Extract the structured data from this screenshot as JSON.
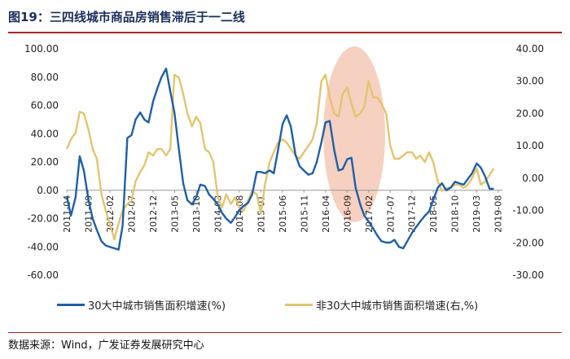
{
  "title": "图19：三四线城市商品房销售滞后于一二线",
  "source": "数据来源：Wind，广发证券发展研究中心",
  "colors": {
    "left_series": "#1f5fa8",
    "right_series": "#e3c46e",
    "highlight": "#f4c4b0",
    "title": "#1a2e5c",
    "rule": "#b22222"
  },
  "chart_data": {
    "type": "line",
    "x": [
      "2011-04",
      "2011-09",
      "2012-02",
      "2012-07",
      "2012-12",
      "2013-05",
      "2013-10",
      "2014-03",
      "2014-08",
      "2015-01",
      "2015-06",
      "2015-11",
      "2016-04",
      "2016-09",
      "2017-02",
      "2017-07",
      "2017-12",
      "2018-05",
      "2018-10",
      "2019-03",
      "2019-08"
    ],
    "y_left_ticks": [
      "100.00",
      "80.00",
      "60.00",
      "40.00",
      "20.00",
      "0.00",
      "-20.00",
      "-40.00",
      "-60.00"
    ],
    "y_right_ticks": [
      "40.00",
      "30.00",
      "20.00",
      "10.00",
      "0.00",
      "-10.00",
      "-20.00",
      "-30.00"
    ],
    "ylim_left": [
      -60,
      100
    ],
    "ylim_right": [
      -30,
      40
    ],
    "grid": false,
    "legend_position": "bottom",
    "series": [
      {
        "name": "30大中城市销售面积增速(%)",
        "axis": "left",
        "values": [
          [
            2011.25,
            -4
          ],
          [
            2011.33,
            -18
          ],
          [
            2011.42,
            -5
          ],
          [
            2011.5,
            24
          ],
          [
            2011.58,
            14
          ],
          [
            2011.67,
            -7
          ],
          [
            2011.75,
            -20
          ],
          [
            2011.83,
            -28
          ],
          [
            2011.92,
            -36
          ],
          [
            2012.0,
            -39
          ],
          [
            2012.08,
            -40
          ],
          [
            2012.17,
            -41
          ],
          [
            2012.25,
            -42
          ],
          [
            2012.33,
            -25
          ],
          [
            2012.42,
            37
          ],
          [
            2012.5,
            39
          ],
          [
            2012.58,
            50
          ],
          [
            2012.67,
            55
          ],
          [
            2012.75,
            50
          ],
          [
            2012.83,
            48
          ],
          [
            2012.92,
            63
          ],
          [
            2013.0,
            72
          ],
          [
            2013.08,
            80
          ],
          [
            2013.17,
            86
          ],
          [
            2013.25,
            70
          ],
          [
            2013.33,
            55
          ],
          [
            2013.42,
            28
          ],
          [
            2013.5,
            5
          ],
          [
            2013.58,
            -7
          ],
          [
            2013.67,
            -10
          ],
          [
            2013.75,
            -5
          ],
          [
            2013.83,
            4
          ],
          [
            2013.92,
            3
          ],
          [
            2014.0,
            -3
          ],
          [
            2014.08,
            -6
          ],
          [
            2014.17,
            -10
          ],
          [
            2014.25,
            -16
          ],
          [
            2014.33,
            -20
          ],
          [
            2014.42,
            -23
          ],
          [
            2014.5,
            -19
          ],
          [
            2014.58,
            -14
          ],
          [
            2014.67,
            -11
          ],
          [
            2014.75,
            -9
          ],
          [
            2014.83,
            -3
          ],
          [
            2014.92,
            13
          ],
          [
            2015.0,
            13
          ],
          [
            2015.08,
            12
          ],
          [
            2015.17,
            14
          ],
          [
            2015.25,
            12
          ],
          [
            2015.33,
            28
          ],
          [
            2015.42,
            47
          ],
          [
            2015.5,
            53
          ],
          [
            2015.58,
            45
          ],
          [
            2015.67,
            25
          ],
          [
            2015.75,
            17
          ],
          [
            2015.83,
            14
          ],
          [
            2015.92,
            11
          ],
          [
            2016.0,
            12
          ],
          [
            2016.08,
            20
          ],
          [
            2016.17,
            34
          ],
          [
            2016.25,
            48
          ],
          [
            2016.33,
            49
          ],
          [
            2016.42,
            28
          ],
          [
            2016.5,
            14
          ],
          [
            2016.58,
            15
          ],
          [
            2016.67,
            22
          ],
          [
            2016.75,
            23
          ],
          [
            2016.83,
            2
          ],
          [
            2016.92,
            -10
          ],
          [
            2017.0,
            -18
          ],
          [
            2017.08,
            -22
          ],
          [
            2017.17,
            -27
          ],
          [
            2017.25,
            -32
          ],
          [
            2017.33,
            -36
          ],
          [
            2017.42,
            -37
          ],
          [
            2017.5,
            -37
          ],
          [
            2017.58,
            -35
          ],
          [
            2017.67,
            -40
          ],
          [
            2017.75,
            -41
          ],
          [
            2017.83,
            -36
          ],
          [
            2017.92,
            -30
          ],
          [
            2018.0,
            -26
          ],
          [
            2018.08,
            -22
          ],
          [
            2018.17,
            -18
          ],
          [
            2018.25,
            -15
          ],
          [
            2018.33,
            -7
          ],
          [
            2018.42,
            2
          ],
          [
            2018.5,
            5
          ],
          [
            2018.58,
            0
          ],
          [
            2018.67,
            2
          ],
          [
            2018.75,
            6
          ],
          [
            2018.83,
            5
          ],
          [
            2018.92,
            4
          ],
          [
            2019.0,
            8
          ],
          [
            2019.08,
            12
          ],
          [
            2019.17,
            19
          ],
          [
            2019.25,
            16
          ],
          [
            2019.33,
            10
          ],
          [
            2019.42,
            1
          ],
          [
            2019.5,
            1
          ]
        ]
      },
      {
        "name": "非30大中城市销售面积增速(右,%)",
        "axis": "right",
        "values": [
          [
            2011.25,
            9
          ],
          [
            2011.33,
            12
          ],
          [
            2011.42,
            14
          ],
          [
            2011.5,
            20.5
          ],
          [
            2011.58,
            20
          ],
          [
            2011.67,
            15
          ],
          [
            2011.75,
            9
          ],
          [
            2011.83,
            6
          ],
          [
            2011.92,
            -5
          ],
          [
            2012.0,
            -10
          ],
          [
            2012.08,
            -14
          ],
          [
            2012.17,
            -19
          ],
          [
            2012.25,
            -14
          ],
          [
            2012.33,
            -10
          ],
          [
            2012.42,
            -8
          ],
          [
            2012.5,
            -7
          ],
          [
            2012.58,
            -1
          ],
          [
            2012.67,
            2
          ],
          [
            2012.75,
            4
          ],
          [
            2012.83,
            8
          ],
          [
            2012.92,
            7
          ],
          [
            2013.0,
            9
          ],
          [
            2013.08,
            9
          ],
          [
            2013.17,
            7
          ],
          [
            2013.25,
            9
          ],
          [
            2013.33,
            32
          ],
          [
            2013.42,
            31
          ],
          [
            2013.5,
            26
          ],
          [
            2013.58,
            20
          ],
          [
            2013.67,
            16
          ],
          [
            2013.75,
            19
          ],
          [
            2013.83,
            17
          ],
          [
            2013.92,
            9
          ],
          [
            2014.0,
            8
          ],
          [
            2014.08,
            5
          ],
          [
            2014.17,
            -6
          ],
          [
            2014.25,
            -9
          ],
          [
            2014.33,
            -5
          ],
          [
            2014.42,
            -8
          ],
          [
            2014.5,
            -6
          ],
          [
            2014.58,
            -9
          ],
          [
            2014.67,
            -10
          ],
          [
            2014.75,
            -7
          ],
          [
            2014.83,
            -4
          ],
          [
            2014.92,
            -5
          ],
          [
            2015.0,
            -11
          ],
          [
            2015.08,
            -2
          ],
          [
            2015.17,
            5
          ],
          [
            2015.25,
            8
          ],
          [
            2015.33,
            11
          ],
          [
            2015.42,
            12
          ],
          [
            2015.5,
            11
          ],
          [
            2015.58,
            9
          ],
          [
            2015.67,
            7
          ],
          [
            2015.75,
            6
          ],
          [
            2015.83,
            8
          ],
          [
            2015.92,
            10
          ],
          [
            2016.0,
            12
          ],
          [
            2016.08,
            17
          ],
          [
            2016.17,
            30
          ],
          [
            2016.25,
            32
          ],
          [
            2016.33,
            25
          ],
          [
            2016.42,
            20
          ],
          [
            2016.5,
            19
          ],
          [
            2016.58,
            26
          ],
          [
            2016.67,
            28
          ],
          [
            2016.75,
            23
          ],
          [
            2016.83,
            19
          ],
          [
            2016.92,
            20
          ],
          [
            2017.0,
            22
          ],
          [
            2017.08,
            30
          ],
          [
            2017.17,
            25
          ],
          [
            2017.25,
            25
          ],
          [
            2017.33,
            23
          ],
          [
            2017.42,
            20
          ],
          [
            2017.5,
            10
          ],
          [
            2017.58,
            6
          ],
          [
            2017.67,
            6
          ],
          [
            2017.75,
            7
          ],
          [
            2017.83,
            8
          ],
          [
            2017.92,
            8
          ],
          [
            2018.0,
            6
          ],
          [
            2018.08,
            7
          ],
          [
            2018.17,
            5
          ],
          [
            2018.25,
            8
          ],
          [
            2018.33,
            5
          ],
          [
            2018.42,
            -1
          ],
          [
            2018.5,
            -4
          ],
          [
            2018.58,
            -3
          ],
          [
            2018.67,
            -3
          ],
          [
            2018.75,
            -2
          ],
          [
            2018.83,
            -2
          ],
          [
            2018.92,
            -3
          ],
          [
            2019.0,
            -2
          ],
          [
            2019.08,
            0
          ],
          [
            2019.17,
            3
          ],
          [
            2019.25,
            -2
          ],
          [
            2019.33,
            -1
          ],
          [
            2019.42,
            1
          ],
          [
            2019.5,
            3
          ]
        ]
      }
    ]
  }
}
